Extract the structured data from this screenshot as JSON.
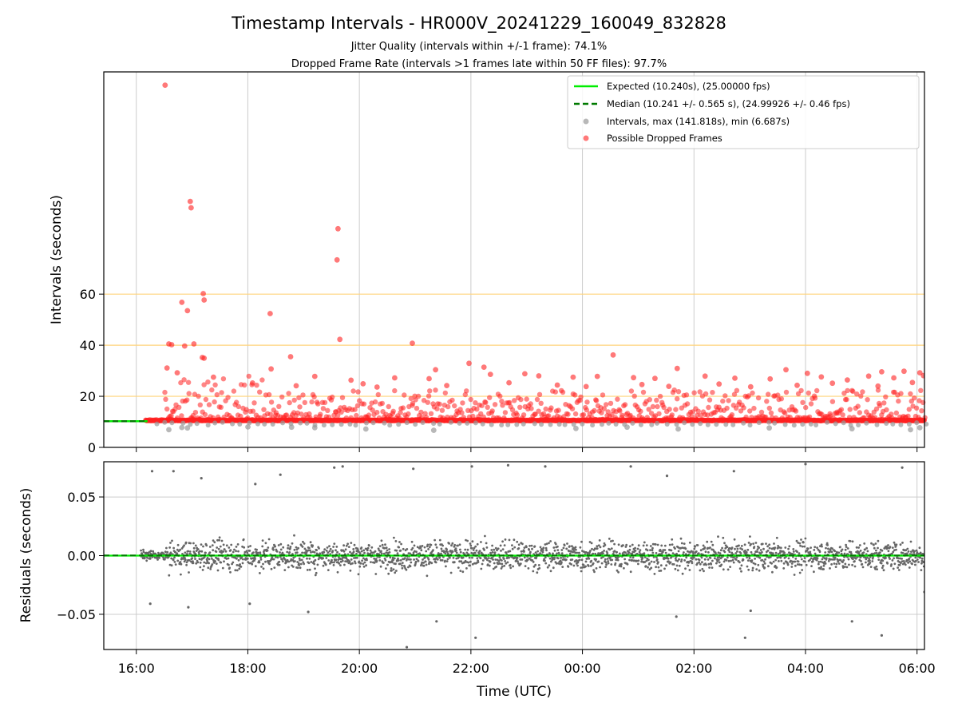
{
  "title": "Timestamp Intervals - HR000V_20241229_160049_832828",
  "subtitle1": "Jitter Quality (intervals within +/-1 frame): 74.1%",
  "subtitle2": "Dropped Frame Rate (intervals >1 frames late within 50 FF files): 97.7%",
  "colors": {
    "expected": "#00ee00",
    "median": "#007a00",
    "intervals": "#9a9a9a",
    "dropped": "#ff2020",
    "residuals": "#666666",
    "hlines": "#ffd37a",
    "grid": "#cccccc"
  },
  "chart_data": [
    {
      "type": "scatter",
      "ylabel": "Intervals (seconds)",
      "xlim": [
        "15:25",
        "06:08"
      ],
      "ylim": [
        0,
        147
      ],
      "yticks": [
        {
          "value": 0,
          "label": "0"
        },
        {
          "value": 20,
          "label": "20"
        },
        {
          "value": 40,
          "label": "40"
        },
        {
          "value": 60,
          "label": "60"
        }
      ],
      "xticks": [
        "16:00",
        "18:00",
        "20:00",
        "22:00",
        "00:00",
        "02:00",
        "04:00",
        "06:00"
      ],
      "hlines": [
        20,
        40,
        60
      ],
      "grid": true,
      "legend_position": "upper right",
      "legend": [
        {
          "label": "Expected (10.240s), (25.00000 fps)",
          "kind": "solid-line",
          "color_key": "expected"
        },
        {
          "label": "Median (10.241 +/- 0.565 s), (24.99926 +/- 0.46 fps)",
          "kind": "dashed-line",
          "color_key": "median"
        },
        {
          "label": "Intervals, max (141.818s), min (6.687s)",
          "kind": "marker",
          "color_key": "intervals"
        },
        {
          "label": "Possible Dropped Frames",
          "kind": "marker",
          "color_key": "dropped"
        }
      ],
      "series": [
        {
          "name": "Expected (10.240s), (25.00000 fps)",
          "kind": "hline",
          "value": 10.24
        },
        {
          "name": "Median (10.241 +/- 0.565 s), (24.99926 +/- 0.46 fps)",
          "kind": "hline",
          "value": 10.241
        },
        {
          "name": "Possible Dropped Frames",
          "kind": "scatter",
          "note_dense": "Dense band of points near 10.3-11 s spans the full time range from about 16:10 onward.",
          "points": [
            [
              "16:31",
              141.8
            ],
            [
              "16:58",
              96.3
            ],
            [
              "16:59",
              93.8
            ],
            [
              "19:37",
              85.6
            ],
            [
              "19:36",
              73.4
            ],
            [
              "17:12",
              60.2
            ],
            [
              "17:13",
              57.7
            ],
            [
              "16:49",
              56.8
            ],
            [
              "16:55",
              53.5
            ],
            [
              "18:24",
              52.4
            ],
            [
              "19:39",
              42.3
            ],
            [
              "16:35",
              40.5
            ],
            [
              "16:38",
              40.2
            ],
            [
              "16:52",
              39.7
            ],
            [
              "17:02",
              40.5
            ],
            [
              "20:57",
              40.8
            ],
            [
              "17:11",
              35.2
            ],
            [
              "17:13",
              34.9
            ],
            [
              "18:46",
              35.5
            ],
            [
              "00:33",
              36.2
            ],
            [
              "21:58",
              32.9
            ],
            [
              "22:14",
              31.4
            ],
            [
              "18:25",
              30.7
            ],
            [
              "21:22",
              30.4
            ],
            [
              "22:21",
              28.6
            ],
            [
              "22:58",
              28.8
            ],
            [
              "01:42",
              30.9
            ],
            [
              "03:39",
              30.4
            ],
            [
              "04:02",
              29.0
            ],
            [
              "05:22",
              29.6
            ],
            [
              "05:46",
              29.8
            ],
            [
              "06:03",
              29.2
            ],
            [
              "06:07",
              28.1
            ],
            [
              "16:33",
              31.1
            ],
            [
              "16:44",
              29.2
            ],
            [
              "17:23",
              27.5
            ],
            [
              "19:12",
              27.8
            ],
            [
              "19:51",
              26.3
            ],
            [
              "20:38",
              27.2
            ],
            [
              "21:15",
              26.9
            ],
            [
              "23:13",
              28.0
            ],
            [
              "23:50",
              27.5
            ],
            [
              "00:16",
              27.8
            ],
            [
              "00:55",
              27.3
            ],
            [
              "01:18",
              27.0
            ],
            [
              "02:12",
              27.9
            ],
            [
              "02:44",
              27.1
            ],
            [
              "03:22",
              26.8
            ],
            [
              "04:17",
              27.6
            ],
            [
              "04:45",
              26.4
            ],
            [
              "05:08",
              27.9
            ],
            [
              "05:35",
              27.2
            ],
            [
              "18:05",
              25.2
            ],
            [
              "18:52",
              24.1
            ],
            [
              "20:04",
              24.9
            ],
            [
              "20:19",
              23.6
            ],
            [
              "21:34",
              24.2
            ],
            [
              "22:41",
              25.3
            ],
            [
              "23:33",
              24.4
            ],
            [
              "00:04",
              23.8
            ],
            [
              "01:04",
              24.6
            ],
            [
              "01:33",
              23.9
            ],
            [
              "02:27",
              24.8
            ],
            [
              "03:01",
              23.7
            ],
            [
              "03:51",
              24.3
            ],
            [
              "04:29",
              25.1
            ],
            [
              "05:18",
              24.0
            ],
            [
              "05:55",
              25.4
            ]
          ]
        },
        {
          "name": "Intervals, max (141.818s), min (6.687s)",
          "kind": "scatter",
          "points": [
            [
              "16:35",
              6.9
            ],
            [
              "16:49",
              7.8
            ],
            [
              "16:55",
              7.6
            ],
            [
              "18:00",
              8.0
            ],
            [
              "18:47",
              7.9
            ],
            [
              "19:12",
              7.7
            ],
            [
              "20:07",
              7.2
            ],
            [
              "21:20",
              6.7
            ],
            [
              "23:53",
              7.4
            ],
            [
              "00:48",
              7.9
            ],
            [
              "01:43",
              7.2
            ],
            [
              "03:21",
              7.6
            ],
            [
              "04:50",
              7.3
            ],
            [
              "05:53",
              6.9
            ],
            [
              "06:03",
              7.7
            ]
          ]
        }
      ]
    },
    {
      "type": "scatter",
      "xlabel": "Time (UTC)",
      "ylabel": "Residuals (seconds)",
      "xlim": [
        "15:25",
        "06:08"
      ],
      "ylim": [
        -0.08,
        0.08
      ],
      "yticks": [
        {
          "value": 0.05,
          "label": "0.05"
        },
        {
          "value": 0.0,
          "label": "0.00"
        },
        {
          "value": -0.05,
          "label": "−0.05"
        }
      ],
      "xticks": [
        "16:00",
        "18:00",
        "20:00",
        "22:00",
        "00:00",
        "02:00",
        "04:00",
        "06:00"
      ],
      "grid": true,
      "series": [
        {
          "name": "Expected",
          "kind": "hline",
          "value": 0.0
        },
        {
          "name": "Median",
          "kind": "hline",
          "value": 0.0002
        },
        {
          "name": "Residuals",
          "kind": "scatter",
          "note_dense": "About 2000 residual points spread roughly within +/-0.03 s around zero from about 16:05 to 06:08.",
          "points": [
            [
              "16:17",
              0.072
            ],
            [
              "16:40",
              0.072
            ],
            [
              "17:10",
              0.066
            ],
            [
              "18:08",
              0.061
            ],
            [
              "18:35",
              0.069
            ],
            [
              "19:33",
              0.075
            ],
            [
              "19:42",
              0.076
            ],
            [
              "20:58",
              0.074
            ],
            [
              "22:01",
              0.076
            ],
            [
              "22:40",
              0.077
            ],
            [
              "23:20",
              0.076
            ],
            [
              "00:52",
              0.076
            ],
            [
              "01:31",
              0.068
            ],
            [
              "02:43",
              0.072
            ],
            [
              "04:00",
              0.078
            ],
            [
              "05:44",
              0.075
            ],
            [
              "16:15",
              -0.041
            ],
            [
              "16:56",
              -0.044
            ],
            [
              "18:02",
              -0.041
            ],
            [
              "19:05",
              -0.048
            ],
            [
              "20:51",
              -0.078
            ],
            [
              "21:23",
              -0.056
            ],
            [
              "22:05",
              -0.07
            ],
            [
              "01:41",
              -0.052
            ],
            [
              "02:55",
              -0.07
            ],
            [
              "03:01",
              -0.047
            ],
            [
              "04:50",
              -0.056
            ],
            [
              "05:22",
              -0.068
            ],
            [
              "06:08",
              -0.031
            ]
          ]
        }
      ]
    }
  ]
}
